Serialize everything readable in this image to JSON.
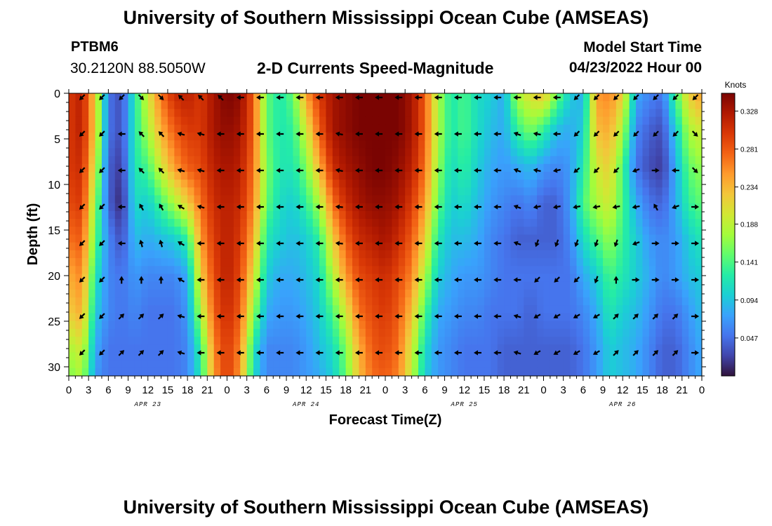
{
  "header": {
    "title": "University of Southern Mississippi Ocean Cube (AMSEAS)",
    "station_id": "PTBM6",
    "coordinates": "30.2120N  88.5050W",
    "plot_title": "2-D Currents Speed-Magnitude",
    "model_start_label": "Model Start Time",
    "model_start_value": "04/23/2022 Hour 00"
  },
  "footer": {
    "title": "University of Southern Mississippi Ocean Cube (AMSEAS)"
  },
  "chart_data": {
    "type": "heatmap",
    "title": "2-D Currents Speed-Magnitude",
    "xlabel": "Forecast Time(Z)",
    "ylabel": "Depth (ft)",
    "x_range_hours": [
      0,
      96
    ],
    "ylim": [
      0,
      31
    ],
    "y_inverted": true,
    "x_ticks_hours": [
      0,
      3,
      6,
      9,
      12,
      15,
      18,
      21,
      24,
      27,
      30,
      33,
      36,
      39,
      42,
      45,
      48,
      51,
      54,
      57,
      60,
      63,
      66,
      69,
      72,
      75,
      78,
      81,
      84,
      87,
      90,
      93,
      96
    ],
    "x_tick_labels": [
      "0",
      "3",
      "6",
      "9",
      "12",
      "15",
      "18",
      "21",
      "0",
      "3",
      "6",
      "9",
      "12",
      "15",
      "18",
      "21",
      "0",
      "3",
      "6",
      "9",
      "12",
      "15",
      "18",
      "21",
      "0",
      "3",
      "6",
      "9",
      "12",
      "15",
      "18",
      "21",
      "0"
    ],
    "y_ticks": [
      0,
      5,
      10,
      15,
      20,
      25,
      30
    ],
    "y_tick_labels": [
      "0",
      "5",
      "10",
      "15",
      "20",
      "25",
      "30"
    ],
    "day_labels": [
      {
        "text": "APR 23",
        "hour": 12
      },
      {
        "text": "APR 24",
        "hour": 36
      },
      {
        "text": "APR 25",
        "hour": 60
      },
      {
        "text": "APR 26",
        "hour": 84
      }
    ],
    "colorbar": {
      "label": "Knots",
      "min": 0.0,
      "max": 0.35,
      "ticks": [
        0.047,
        0.094,
        0.141,
        0.188,
        0.234,
        0.281,
        0.328
      ],
      "tick_labels": [
        "0.047",
        "0.094",
        "0.141",
        "0.188",
        "0.234",
        "0.281",
        "0.328"
      ],
      "colormap": [
        "#30123b",
        "#4145ab",
        "#4675ed",
        "#39a2fc",
        "#1bcfd4",
        "#24eca6",
        "#61fc6c",
        "#a4fc3b",
        "#d1e834",
        "#f3c63a",
        "#fe9b2d",
        "#f36315",
        "#d93806",
        "#b11901",
        "#7a0402"
      ]
    },
    "depths_ft": [
      0,
      4,
      8,
      12,
      16,
      20,
      24,
      28,
      31
    ],
    "hours": [
      0,
      2,
      4,
      6,
      8,
      10,
      12,
      14,
      16,
      18,
      20,
      22,
      24,
      26,
      28,
      30,
      32,
      34,
      36,
      38,
      40,
      42,
      44,
      46,
      48,
      50,
      52,
      54,
      56,
      58,
      60,
      62,
      64,
      66,
      68,
      70,
      72,
      74,
      76,
      78,
      80,
      82,
      84,
      86,
      88,
      90,
      92,
      94,
      96
    ],
    "speed_knots": [
      [
        0.3,
        0.32,
        0.22,
        0.05,
        0.03,
        0.12,
        0.2,
        0.27,
        0.31,
        0.32,
        0.3,
        0.33,
        0.35,
        0.34,
        0.28,
        0.15,
        0.12,
        0.15,
        0.25,
        0.3,
        0.33,
        0.34,
        0.35,
        0.35,
        0.35,
        0.35,
        0.33,
        0.28,
        0.18,
        0.12,
        0.14,
        0.11,
        0.1,
        0.08,
        0.18,
        0.21,
        0.23,
        0.16,
        0.1,
        0.08,
        0.25,
        0.26,
        0.22,
        0.08,
        0.06,
        0.05,
        0.14,
        0.22,
        0.25
      ],
      [
        0.3,
        0.32,
        0.22,
        0.05,
        0.03,
        0.12,
        0.18,
        0.24,
        0.28,
        0.3,
        0.3,
        0.33,
        0.34,
        0.33,
        0.28,
        0.15,
        0.12,
        0.13,
        0.2,
        0.28,
        0.33,
        0.34,
        0.35,
        0.35,
        0.35,
        0.35,
        0.33,
        0.28,
        0.18,
        0.12,
        0.14,
        0.11,
        0.09,
        0.08,
        0.13,
        0.16,
        0.13,
        0.09,
        0.08,
        0.1,
        0.23,
        0.24,
        0.18,
        0.06,
        0.04,
        0.03,
        0.1,
        0.18,
        0.2
      ],
      [
        0.3,
        0.31,
        0.2,
        0.04,
        0.02,
        0.12,
        0.14,
        0.2,
        0.25,
        0.28,
        0.29,
        0.32,
        0.33,
        0.32,
        0.27,
        0.16,
        0.12,
        0.12,
        0.16,
        0.24,
        0.31,
        0.33,
        0.34,
        0.35,
        0.35,
        0.34,
        0.32,
        0.27,
        0.17,
        0.11,
        0.13,
        0.1,
        0.08,
        0.07,
        0.08,
        0.09,
        0.07,
        0.06,
        0.07,
        0.12,
        0.2,
        0.22,
        0.14,
        0.05,
        0.03,
        0.02,
        0.08,
        0.15,
        0.17
      ],
      [
        0.29,
        0.3,
        0.17,
        0.04,
        0.01,
        0.11,
        0.1,
        0.14,
        0.18,
        0.22,
        0.27,
        0.31,
        0.32,
        0.31,
        0.26,
        0.15,
        0.11,
        0.1,
        0.13,
        0.18,
        0.27,
        0.31,
        0.33,
        0.34,
        0.34,
        0.33,
        0.3,
        0.25,
        0.15,
        0.1,
        0.11,
        0.09,
        0.07,
        0.06,
        0.05,
        0.06,
        0.04,
        0.04,
        0.07,
        0.14,
        0.18,
        0.2,
        0.14,
        0.08,
        0.05,
        0.04,
        0.08,
        0.13,
        0.15
      ],
      [
        0.27,
        0.28,
        0.15,
        0.06,
        0.03,
        0.09,
        0.08,
        0.09,
        0.1,
        0.13,
        0.25,
        0.3,
        0.32,
        0.3,
        0.24,
        0.12,
        0.1,
        0.09,
        0.1,
        0.13,
        0.22,
        0.28,
        0.31,
        0.32,
        0.33,
        0.31,
        0.28,
        0.22,
        0.12,
        0.09,
        0.09,
        0.08,
        0.06,
        0.05,
        0.04,
        0.04,
        0.04,
        0.04,
        0.06,
        0.11,
        0.14,
        0.17,
        0.13,
        0.1,
        0.07,
        0.06,
        0.07,
        0.1,
        0.12
      ],
      [
        0.24,
        0.26,
        0.12,
        0.06,
        0.05,
        0.07,
        0.06,
        0.06,
        0.06,
        0.08,
        0.22,
        0.29,
        0.32,
        0.29,
        0.21,
        0.1,
        0.08,
        0.08,
        0.09,
        0.11,
        0.18,
        0.25,
        0.29,
        0.3,
        0.31,
        0.29,
        0.26,
        0.18,
        0.1,
        0.08,
        0.07,
        0.07,
        0.06,
        0.05,
        0.05,
        0.05,
        0.05,
        0.05,
        0.05,
        0.08,
        0.1,
        0.14,
        0.12,
        0.1,
        0.08,
        0.06,
        0.07,
        0.09,
        0.1
      ],
      [
        0.22,
        0.24,
        0.1,
        0.06,
        0.05,
        0.06,
        0.05,
        0.05,
        0.05,
        0.07,
        0.18,
        0.28,
        0.31,
        0.28,
        0.17,
        0.08,
        0.07,
        0.07,
        0.08,
        0.1,
        0.14,
        0.2,
        0.27,
        0.29,
        0.3,
        0.28,
        0.23,
        0.14,
        0.08,
        0.07,
        0.06,
        0.06,
        0.05,
        0.05,
        0.05,
        0.04,
        0.05,
        0.05,
        0.05,
        0.06,
        0.08,
        0.12,
        0.1,
        0.09,
        0.07,
        0.05,
        0.05,
        0.07,
        0.09
      ],
      [
        0.18,
        0.2,
        0.08,
        0.05,
        0.05,
        0.05,
        0.05,
        0.05,
        0.05,
        0.06,
        0.13,
        0.26,
        0.3,
        0.26,
        0.12,
        0.06,
        0.06,
        0.06,
        0.07,
        0.09,
        0.11,
        0.16,
        0.24,
        0.28,
        0.29,
        0.27,
        0.2,
        0.11,
        0.07,
        0.06,
        0.05,
        0.05,
        0.05,
        0.04,
        0.04,
        0.04,
        0.04,
        0.04,
        0.04,
        0.05,
        0.07,
        0.1,
        0.09,
        0.08,
        0.06,
        0.04,
        0.04,
        0.06,
        0.08
      ],
      [
        0.16,
        0.18,
        0.07,
        0.05,
        0.05,
        0.05,
        0.05,
        0.05,
        0.05,
        0.06,
        0.12,
        0.25,
        0.3,
        0.25,
        0.11,
        0.06,
        0.06,
        0.06,
        0.07,
        0.08,
        0.1,
        0.15,
        0.23,
        0.27,
        0.28,
        0.26,
        0.19,
        0.1,
        0.07,
        0.06,
        0.05,
        0.05,
        0.05,
        0.04,
        0.04,
        0.04,
        0.04,
        0.04,
        0.04,
        0.05,
        0.07,
        0.1,
        0.09,
        0.08,
        0.06,
        0.04,
        0.04,
        0.06,
        0.08
      ]
    ],
    "arrow_depths_ft": [
      0,
      4,
      8,
      12,
      16,
      20,
      24,
      28
    ],
    "arrow_hours": [
      2,
      5,
      8,
      11,
      14,
      17,
      20,
      23,
      26,
      29,
      32,
      35,
      38,
      41,
      44,
      47,
      50,
      53,
      56,
      59,
      62,
      65,
      68,
      71,
      74,
      77,
      80,
      83,
      86,
      89,
      92,
      95
    ],
    "arrow_direction_deg": [
      [
        225,
        225,
        225,
        135,
        135,
        315,
        315,
        315,
        270,
        270,
        270,
        270,
        270,
        270,
        270,
        270,
        270,
        270,
        270,
        270,
        270,
        270,
        270,
        270,
        270,
        225,
        225,
        225,
        225,
        225,
        225,
        225
      ],
      [
        225,
        225,
        270,
        315,
        315,
        285,
        285,
        270,
        270,
        270,
        270,
        270,
        270,
        280,
        270,
        270,
        270,
        270,
        270,
        270,
        270,
        270,
        290,
        280,
        270,
        225,
        225,
        225,
        225,
        225,
        225,
        135
      ],
      [
        225,
        225,
        270,
        315,
        315,
        285,
        285,
        270,
        270,
        270,
        270,
        270,
        270,
        280,
        270,
        270,
        270,
        270,
        270,
        270,
        270,
        270,
        290,
        280,
        260,
        230,
        225,
        225,
        250,
        90,
        270,
        135
      ],
      [
        225,
        225,
        270,
        330,
        330,
        300,
        285,
        270,
        270,
        270,
        270,
        270,
        270,
        275,
        270,
        270,
        270,
        270,
        270,
        270,
        270,
        270,
        290,
        260,
        260,
        260,
        260,
        260,
        260,
        330,
        250,
        90
      ],
      [
        225,
        225,
        270,
        345,
        345,
        300,
        270,
        270,
        270,
        270,
        270,
        270,
        270,
        275,
        270,
        270,
        270,
        270,
        270,
        270,
        270,
        270,
        290,
        200,
        200,
        200,
        200,
        200,
        250,
        90,
        90,
        90
      ],
      [
        225,
        225,
        0,
        0,
        0,
        300,
        270,
        270,
        270,
        270,
        270,
        270,
        270,
        270,
        270,
        270,
        270,
        270,
        270,
        270,
        270,
        270,
        270,
        225,
        225,
        225,
        200,
        0,
        90,
        90,
        90,
        90
      ],
      [
        225,
        225,
        45,
        45,
        45,
        285,
        270,
        270,
        270,
        270,
        270,
        270,
        270,
        270,
        270,
        270,
        270,
        270,
        270,
        270,
        270,
        270,
        285,
        240,
        240,
        240,
        240,
        45,
        45,
        45,
        45,
        90
      ],
      [
        225,
        225,
        45,
        45,
        45,
        285,
        270,
        270,
        270,
        270,
        270,
        270,
        270,
        270,
        270,
        270,
        270,
        270,
        270,
        270,
        270,
        270,
        285,
        240,
        240,
        240,
        240,
        45,
        45,
        45,
        45,
        90
      ]
    ]
  }
}
